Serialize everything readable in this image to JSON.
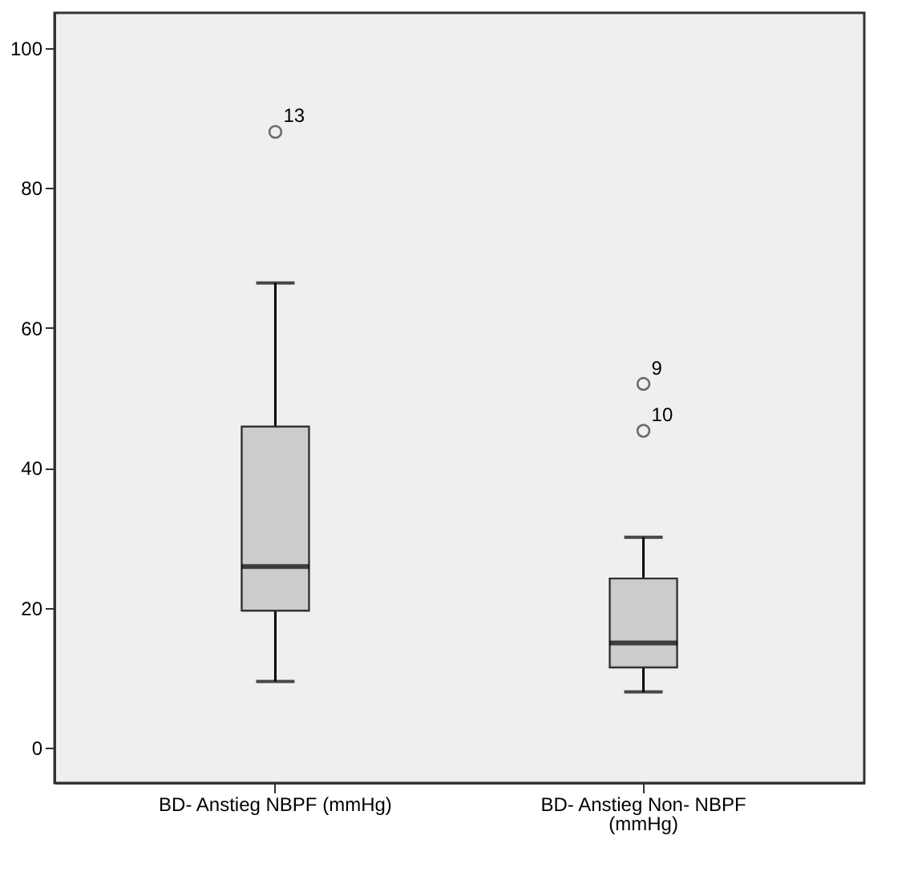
{
  "chart_data": {
    "type": "box",
    "categories": [
      "BD- Anstieg NBPF (mmHg)",
      "BD- Anstieg Non- NBPF (mmHg)"
    ],
    "series": [
      {
        "color": "#cccccc",
        "boxes": [
          {
            "low": 9.5,
            "q1": 19.6,
            "median": 25.9,
            "q3": 45.9,
            "high": 66.4,
            "outliers": [
              88.0
            ]
          },
          {
            "low": 8,
            "q1": 11.5,
            "median": 15.0,
            "q3": 24.2,
            "high": 30.1,
            "outliers": [
              52.0,
              45.3
            ]
          }
        ]
      }
    ],
    "ylim": [
      -5,
      105
    ],
    "yticks": [
      0,
      20,
      40,
      60,
      80,
      100
    ],
    "annotations": [
      "13",
      "9",
      "10"
    ]
  }
}
